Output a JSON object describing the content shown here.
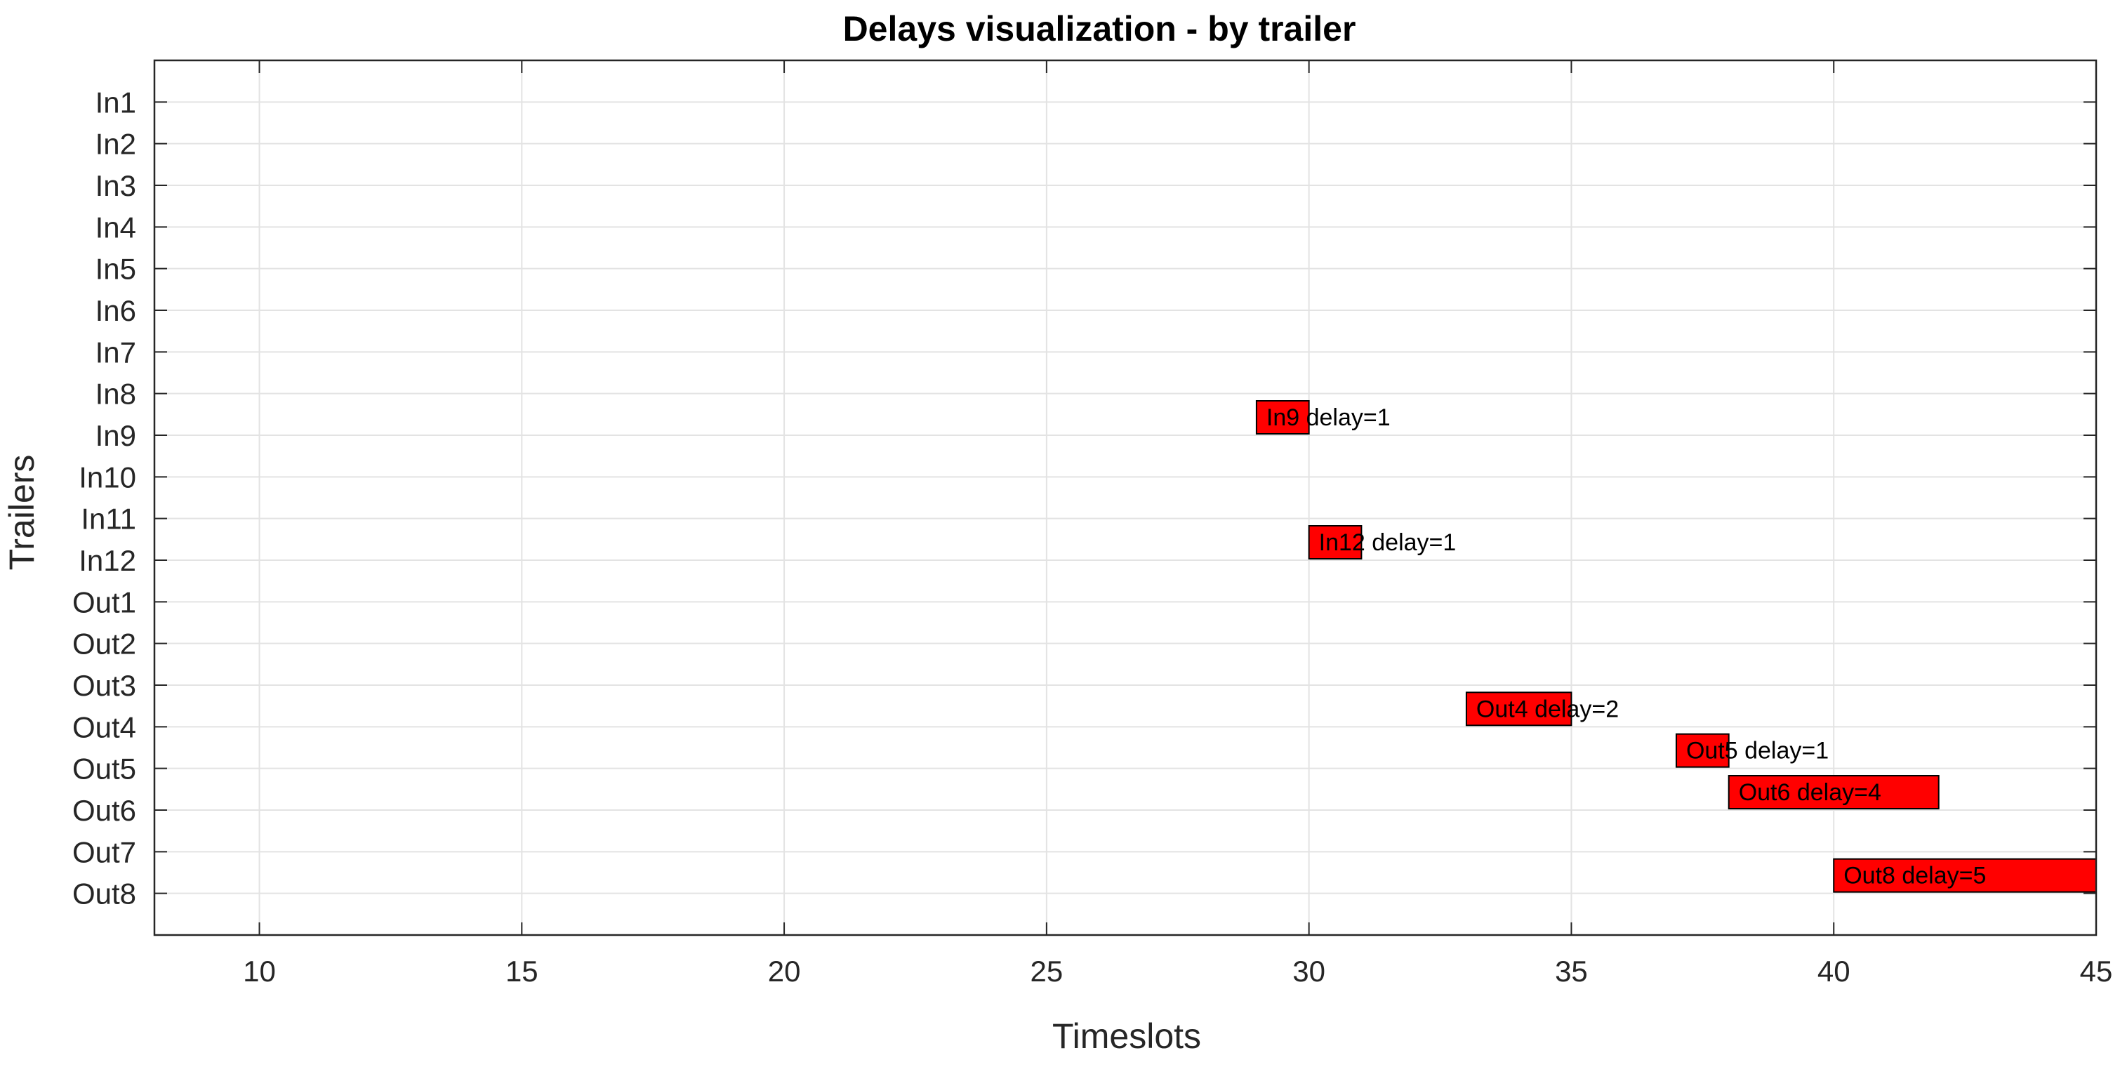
{
  "chart_data": {
    "type": "bar",
    "orientation": "horizontal",
    "title": "Delays visualization - by trailer",
    "xlabel": "Timeslots",
    "ylabel": "Trailers",
    "xlim": [
      8,
      45
    ],
    "xticks": [
      10,
      15,
      20,
      25,
      30,
      35,
      40,
      45
    ],
    "categories": [
      "In1",
      "In2",
      "In3",
      "In4",
      "In5",
      "In6",
      "In7",
      "In8",
      "In9",
      "In10",
      "In11",
      "In12",
      "Out1",
      "Out2",
      "Out3",
      "Out4",
      "Out5",
      "Out6",
      "Out7",
      "Out8"
    ],
    "grid": true,
    "bar_color": "#ff0000",
    "bars": [
      {
        "trailer": "In9",
        "start": 29,
        "end": 30,
        "label": "In9 delay=1"
      },
      {
        "trailer": "In12",
        "start": 30,
        "end": 31,
        "label": "In12 delay=1"
      },
      {
        "trailer": "Out4",
        "start": 33,
        "end": 35,
        "label": "Out4 delay=2"
      },
      {
        "trailer": "Out5",
        "start": 37,
        "end": 38,
        "label": "Out5 delay=1"
      },
      {
        "trailer": "Out6",
        "start": 38,
        "end": 42,
        "label": "Out6 delay=4"
      },
      {
        "trailer": "Out8",
        "start": 40,
        "end": 45,
        "label": "Out8 delay=5"
      }
    ]
  }
}
